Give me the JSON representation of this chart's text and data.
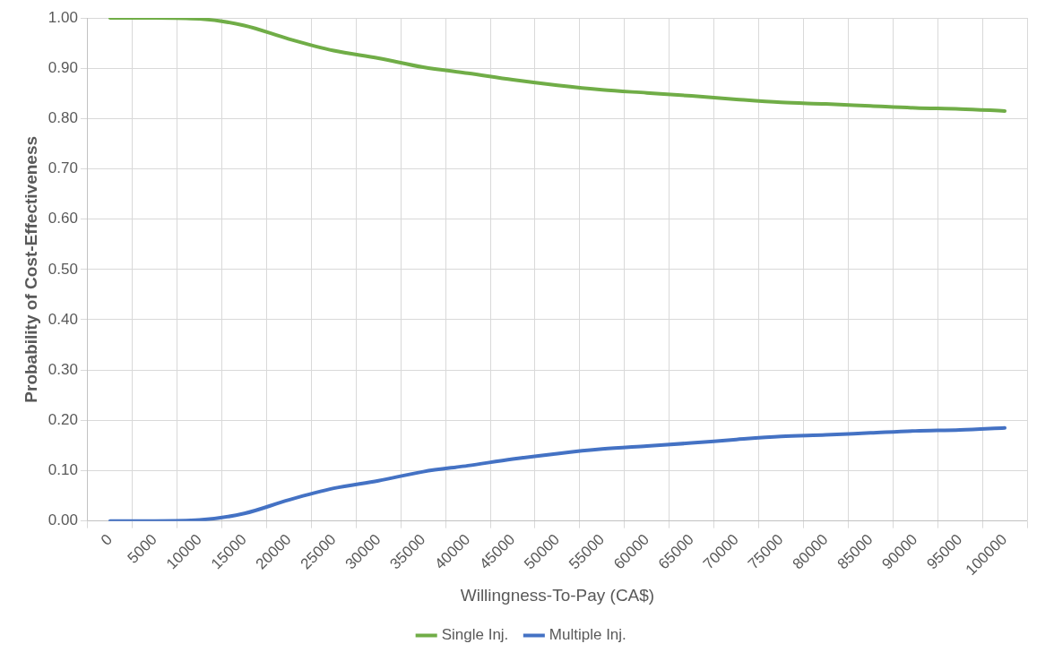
{
  "chart_data": {
    "type": "line",
    "xlabel": "Willingness-To-Pay (CA$)",
    "ylabel": "Probability of Cost-Effectiveness",
    "categories": [
      "0",
      "5000",
      "10000",
      "15000",
      "20000",
      "25000",
      "30000",
      "35000",
      "40000",
      "45000",
      "50000",
      "55000",
      "60000",
      "65000",
      "70000",
      "75000",
      "80000",
      "85000",
      "90000",
      "95000",
      "100000"
    ],
    "series": [
      {
        "name": "Single Inj.",
        "color": "#70ad47",
        "values": [
          1.0,
          1.0,
          0.998,
          0.985,
          0.958,
          0.935,
          0.92,
          0.902,
          0.89,
          0.877,
          0.866,
          0.857,
          0.851,
          0.845,
          0.838,
          0.832,
          0.829,
          0.825,
          0.821,
          0.819,
          0.815
        ]
      },
      {
        "name": "Multiple Inj.",
        "color": "#4472c4",
        "values": [
          0.0,
          0.0,
          0.002,
          0.015,
          0.042,
          0.065,
          0.08,
          0.098,
          0.11,
          0.123,
          0.134,
          0.143,
          0.149,
          0.155,
          0.162,
          0.168,
          0.171,
          0.175,
          0.179,
          0.181,
          0.185
        ]
      }
    ],
    "ylim": [
      0,
      1
    ],
    "yticks": [
      {
        "value": 0,
        "label": "0.00"
      },
      {
        "value": 0.1,
        "label": "0.10"
      },
      {
        "value": 0.2,
        "label": "0.20"
      },
      {
        "value": 0.3,
        "label": "0.30"
      },
      {
        "value": 0.4,
        "label": "0.40"
      },
      {
        "value": 0.5,
        "label": "0.50"
      },
      {
        "value": 0.6,
        "label": "0.60"
      },
      {
        "value": 0.7,
        "label": "0.70"
      },
      {
        "value": 0.8,
        "label": "0.80"
      },
      {
        "value": 0.9,
        "label": "0.90"
      },
      {
        "value": 1,
        "label": "1.00"
      }
    ],
    "grid": true,
    "legend": "bottom",
    "marker": "none",
    "line_style": "solid"
  }
}
